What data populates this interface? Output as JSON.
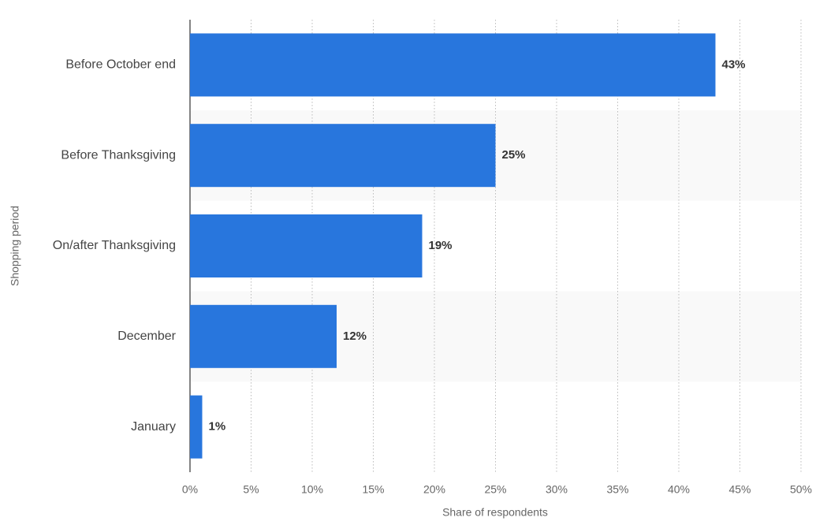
{
  "chart_data": {
    "type": "bar",
    "orientation": "horizontal",
    "x_label": "Share of respondents",
    "y_label": "Shopping period",
    "categories": [
      "Before October end",
      "Before Thanksgiving",
      "On/after Thanksgiving",
      "December",
      "January"
    ],
    "values": [
      43,
      25,
      19,
      12,
      1
    ],
    "value_labels": [
      "43%",
      "25%",
      "19%",
      "12%",
      "1%"
    ],
    "color": "#2876dd",
    "xlim": [
      0,
      50
    ],
    "xticks": [
      {
        "value": 0,
        "label": "0%"
      },
      {
        "value": 5,
        "label": "5%"
      },
      {
        "value": 10,
        "label": "10%"
      },
      {
        "value": 15,
        "label": "15%"
      },
      {
        "value": 20,
        "label": "20%"
      },
      {
        "value": 25,
        "label": "25%"
      },
      {
        "value": 30,
        "label": "30%"
      },
      {
        "value": 35,
        "label": "35%"
      },
      {
        "value": 40,
        "label": "40%"
      },
      {
        "value": 45,
        "label": "45%"
      },
      {
        "value": 50,
        "label": "50%"
      }
    ],
    "grid": true
  }
}
